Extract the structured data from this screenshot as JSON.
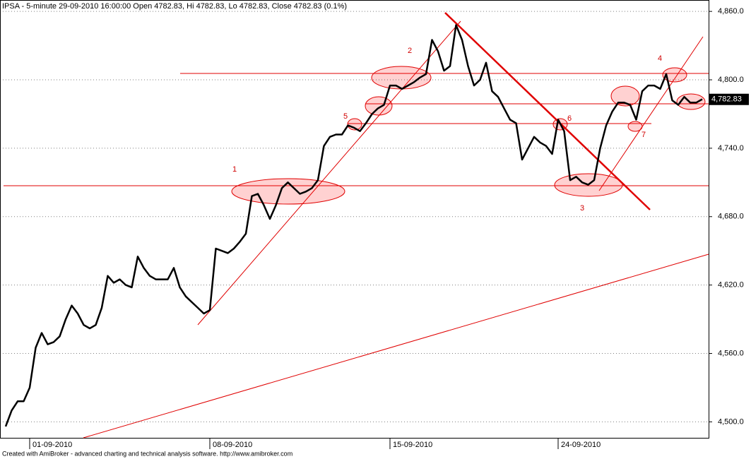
{
  "chart_data": {
    "type": "line",
    "title": "IPSA - 5-minute 29-09-2010 16:00:00 Open 4782.83, Hi 4782.83, Lo 4782.83, Close 4782.83 (0.1%)",
    "footer": "Created with AmiBroker - advanced charting and technical analysis software. http://www.amibroker.com",
    "categories": [
      null,
      null,
      null,
      null,
      "01-09-2010",
      null,
      null,
      null,
      null,
      null,
      null,
      null,
      null,
      null,
      null,
      null,
      null,
      null,
      null,
      null,
      null,
      null,
      null,
      null,
      null,
      null,
      null,
      null,
      null,
      null,
      null,
      null,
      null,
      null,
      "08-09-2010",
      null,
      null,
      null,
      null,
      null,
      null,
      null,
      null,
      null,
      null,
      null,
      null,
      null,
      null,
      null,
      null,
      null,
      null,
      null,
      null,
      null,
      null,
      null,
      null,
      null,
      null,
      null,
      null,
      null,
      "15-09-2010",
      null,
      null,
      null,
      null,
      null,
      null,
      null,
      null,
      null,
      null,
      null,
      null,
      null,
      null,
      null,
      null,
      null,
      null,
      null,
      null,
      null,
      null,
      null,
      null,
      null,
      null,
      null,
      "24-09-2010",
      null,
      null,
      null,
      null,
      null,
      null,
      null,
      null,
      null,
      null,
      null,
      null,
      null,
      null,
      null,
      null,
      null,
      null,
      null,
      null,
      null,
      null,
      null,
      null
    ],
    "series": [
      {
        "name": "IPSA",
        "color": "#000000",
        "values": [
          4496,
          4510,
          4518,
          4518,
          4530,
          4565,
          4578,
          4568,
          4570,
          4575,
          4590,
          4602,
          4595,
          4585,
          4582,
          4585,
          4600,
          4628,
          4622,
          4625,
          4620,
          4618,
          4645,
          4635,
          4628,
          4625,
          4625,
          4625,
          4635,
          4618,
          4610,
          4605,
          4600,
          4595,
          4598,
          4652,
          4650,
          4648,
          4652,
          4658,
          4665,
          4698,
          4700,
          4690,
          4678,
          4690,
          4705,
          4710,
          4705,
          4700,
          4702,
          4705,
          4712,
          4742,
          4750,
          4752,
          4752,
          4760,
          4758,
          4755,
          4762,
          4770,
          4775,
          4778,
          4795,
          4795,
          4792,
          4795,
          4798,
          4802,
          4805,
          4835,
          4825,
          4808,
          4812,
          4848,
          4835,
          4812,
          4795,
          4800,
          4815,
          4790,
          4785,
          4775,
          4765,
          4762,
          4730,
          4740,
          4750,
          4745,
          4742,
          4735,
          4765,
          4755,
          4712,
          4715,
          4710,
          4708,
          4712,
          4740,
          4760,
          4772,
          4780,
          4780,
          4778,
          4765,
          4790,
          4795,
          4795,
          4792,
          4805,
          4782,
          4778,
          4785,
          4780,
          4780,
          4783
        ]
      }
    ],
    "last_value": {
      "value": 4782.83,
      "label": "4,782.83"
    },
    "ylim": [
      4486,
      4870
    ],
    "yticks": [
      {
        "value": 4500,
        "label": "4,500.0"
      },
      {
        "value": 4560,
        "label": "4,560.0"
      },
      {
        "value": 4620,
        "label": "4,620.0"
      },
      {
        "value": 4680,
        "label": "4,680.0"
      },
      {
        "value": 4740,
        "label": "4,740.0"
      },
      {
        "value": 4800,
        "label": "4,800.0"
      },
      {
        "value": 4860,
        "label": "4,860.0"
      }
    ],
    "annotations": [
      "1",
      "2",
      "3",
      "4",
      "5",
      "6",
      "7"
    ]
  }
}
